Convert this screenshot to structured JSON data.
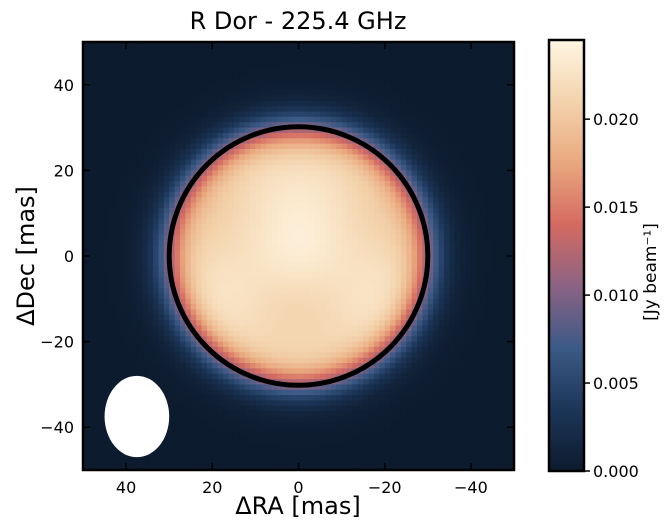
{
  "chart_data": {
    "type": "heatmap",
    "title": "R Dor - 225.4 GHz",
    "xlabel": "ΔRA [mas]",
    "ylabel": "ΔDec [mas]",
    "xlim": [
      50,
      -50
    ],
    "ylim": [
      -50,
      50
    ],
    "x_ticks": [
      40,
      20,
      0,
      -20,
      -40
    ],
    "x_tick_labels": [
      "40",
      "20",
      "0",
      "−20",
      "−40"
    ],
    "y_ticks": [
      40,
      20,
      0,
      -20,
      -40
    ],
    "y_tick_labels": [
      "40",
      "20",
      "0",
      "−20",
      "−40"
    ],
    "colormap": {
      "name": "cmr.lavender-like",
      "stops": [
        "#0d1b2e",
        "#1c3658",
        "#3c5a86",
        "#8b6384",
        "#d46a61",
        "#e9a87e",
        "#f3d3ac",
        "#fff6e2"
      ]
    },
    "colorbar": {
      "label": "[Jy beam⁻¹]",
      "vmin": 0.0,
      "vmax": 0.0245,
      "ticks": [
        0.0,
        0.005,
        0.01,
        0.015,
        0.02
      ],
      "tick_labels": [
        "0.000",
        "0.005",
        "0.010",
        "0.015",
        "0.020"
      ]
    },
    "source": {
      "center": [
        0,
        0
      ],
      "peak": 0.0245,
      "radius_mas": 30,
      "edge_width_mas": 5.5,
      "outline_circle_radius_mas": 30,
      "outline_color": "#000000"
    },
    "beam": {
      "center": [
        37.5,
        -37.5
      ],
      "width_mas": 15,
      "height_mas": 19,
      "color": "#ffffff"
    },
    "grid": false
  }
}
